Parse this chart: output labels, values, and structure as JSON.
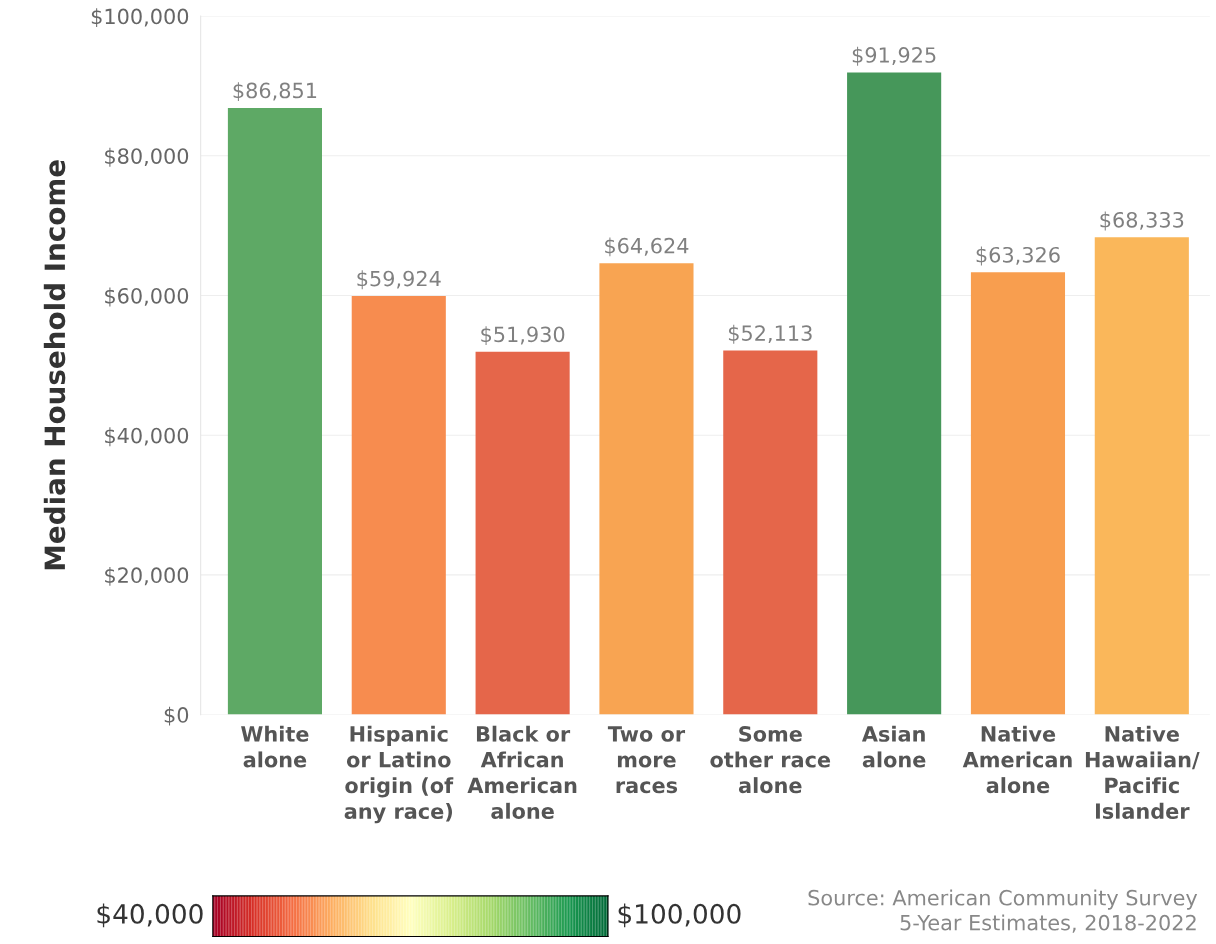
{
  "chart_data": {
    "type": "bar",
    "ylabel": "Median Household Income",
    "categories": [
      "White\nalone",
      "Hispanic\nor Latino\norigin (of\nany race)",
      "Black or\nAfrican\nAmerican\nalone",
      "Two or\nmore\nraces",
      "Some\nother race\nalone",
      "Asian\nalone",
      "Native\nAmerican\nalone",
      "Native\nHawaiian/\nPacific\nIslander"
    ],
    "values": [
      86851,
      59924,
      51930,
      64624,
      52113,
      91925,
      63326,
      68333
    ],
    "value_labels": [
      "$86,851",
      "$59,924",
      "$51,930",
      "$64,624",
      "$52,113",
      "$91,925",
      "$63,326",
      "$68,333"
    ],
    "colors": [
      "#5ea965",
      "#f78c4f",
      "#e5664a",
      "#f8a452",
      "#e5664a",
      "#46975a",
      "#f89e4f",
      "#fab75a"
    ],
    "ylim": [
      0,
      100000
    ],
    "yticks": [
      {
        "value": 0,
        "label": "$0"
      },
      {
        "value": 20000,
        "label": "$20,000"
      },
      {
        "value": 40000,
        "label": "$40,000"
      },
      {
        "value": 60000,
        "label": "$60,000"
      },
      {
        "value": 80000,
        "label": "$80,000"
      },
      {
        "value": 100000,
        "label": "$100,000"
      }
    ],
    "grid": "y",
    "clim": [
      40000,
      100000
    ],
    "cticks": [
      {
        "value": 40000,
        "label": "$40,000"
      },
      {
        "value": 100000,
        "label": "$100,000"
      }
    ],
    "annotations": [
      "Source: American Community Survey\n5-Year Estimates, 2018-2022"
    ]
  }
}
